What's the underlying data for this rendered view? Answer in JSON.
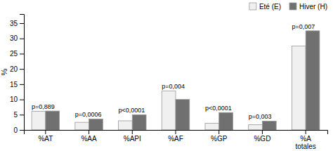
{
  "chart_data": {
    "type": "bar",
    "categories": [
      "%AT",
      "%AA",
      "%API",
      "%AF",
      "%GP",
      "%GD",
      "%A\ntotales"
    ],
    "series": [
      {
        "name": "Eté (E)",
        "color": "#f0f0f0",
        "values": [
          6.1,
          2.5,
          3.0,
          12.8,
          2.2,
          1.7,
          27.5
        ]
      },
      {
        "name": "Hiver (H)",
        "color": "#707070",
        "values": [
          6.2,
          3.6,
          5.0,
          10.0,
          5.7,
          2.9,
          32.5
        ]
      }
    ],
    "annotations": [
      "p=0,889",
      "p=0,0006",
      "p<0,0001",
      "p=0,004",
      "p<0,0001",
      "p=0,003",
      "p=0,007"
    ],
    "y_label": "%",
    "ylim": [
      0,
      38
    ],
    "yticks": [
      0,
      5,
      10,
      15,
      20,
      25,
      30,
      35
    ],
    "grid": false,
    "legend": "upper right"
  }
}
